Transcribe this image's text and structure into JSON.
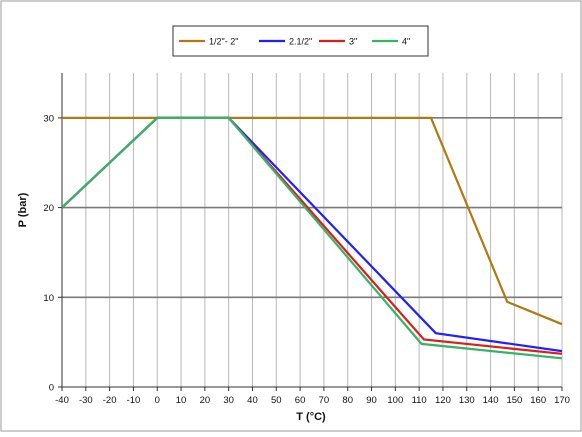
{
  "chart_data": {
    "type": "line",
    "xlabel": "T (°C)",
    "ylabel": "P (bar)",
    "xlim": [
      -40,
      170
    ],
    "ylim": [
      0,
      35
    ],
    "x_ticks": [
      -40,
      -30,
      -20,
      -10,
      0,
      10,
      20,
      30,
      40,
      50,
      60,
      70,
      80,
      90,
      100,
      110,
      120,
      130,
      140,
      150,
      160,
      170
    ],
    "y_ticks": [
      0,
      10,
      20,
      30
    ],
    "grid": {
      "vertical": true,
      "horizontal": true,
      "horizontal_major": true
    },
    "legend_position": "top-center",
    "series": [
      {
        "name": "1/2\"- 2\"",
        "color": "#b07a10",
        "points": [
          [
            -40,
            30
          ],
          [
            115,
            30
          ],
          [
            147,
            9.5
          ],
          [
            170,
            7
          ]
        ]
      },
      {
        "name": "2.1/2\"",
        "color": "#1f1fff",
        "points": [
          [
            -40,
            20
          ],
          [
            0,
            30
          ],
          [
            30,
            30
          ],
          [
            117,
            6
          ],
          [
            170,
            4
          ]
        ]
      },
      {
        "name": "3\"",
        "color": "#e01b1b",
        "points": [
          [
            -40,
            20
          ],
          [
            0,
            30
          ],
          [
            30,
            30
          ],
          [
            112,
            5.3
          ],
          [
            170,
            3.7
          ]
        ]
      },
      {
        "name": "4\"",
        "color": "#33b566",
        "points": [
          [
            -40,
            20
          ],
          [
            0,
            30
          ],
          [
            30,
            30
          ],
          [
            111,
            4.8
          ],
          [
            170,
            3.2
          ]
        ]
      }
    ]
  }
}
